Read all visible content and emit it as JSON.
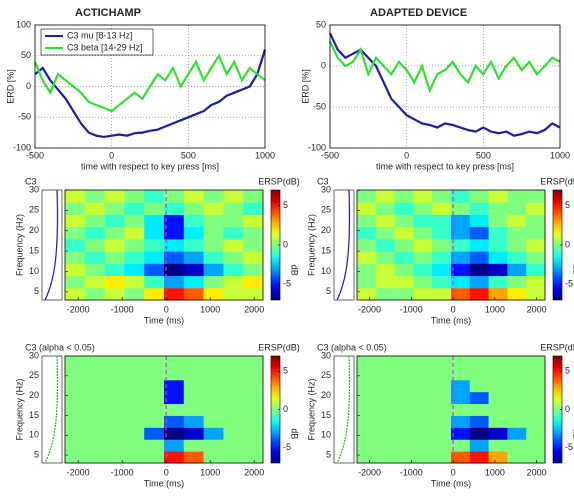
{
  "chart_data": [
    {
      "type": "line",
      "title": "ACTICHAMP",
      "ylabel": "ERD [%]",
      "xlabel": "time with respect to key press [ms]",
      "x": [
        -500,
        -450,
        -400,
        -350,
        -300,
        -250,
        -200,
        -150,
        -100,
        -50,
        0,
        50,
        100,
        150,
        200,
        250,
        300,
        350,
        400,
        450,
        500,
        550,
        600,
        650,
        700,
        750,
        800,
        850,
        900,
        950,
        1000
      ],
      "series": [
        {
          "name": "C3 mu [8-13 Hz]",
          "color": "#1c1ca8",
          "values": [
            20,
            30,
            10,
            -5,
            -20,
            -40,
            -60,
            -75,
            -80,
            -82,
            -80,
            -78,
            -80,
            -76,
            -75,
            -72,
            -70,
            -65,
            -60,
            -55,
            -50,
            -45,
            -40,
            -30,
            -25,
            -15,
            -10,
            -5,
            0,
            20,
            60
          ]
        },
        {
          "name": "C3 beta [14-29 Hz]",
          "color": "#33dd33",
          "values": [
            40,
            10,
            -10,
            20,
            10,
            0,
            -10,
            -25,
            -30,
            -35,
            -40,
            -30,
            -20,
            -10,
            -20,
            0,
            20,
            10,
            30,
            0,
            20,
            40,
            10,
            30,
            50,
            20,
            40,
            10,
            30,
            20,
            10
          ]
        }
      ],
      "xlim": [
        -500,
        1000
      ],
      "xticks": [
        -500,
        0,
        500,
        1000
      ],
      "ylim": [
        -100,
        100
      ],
      "yticks": [
        -100,
        -50,
        0,
        50,
        100
      ],
      "grid": true,
      "legend": "upper left"
    },
    {
      "type": "line",
      "title": "ADAPTED DEVICE",
      "ylabel": "ERD [%]",
      "xlabel": "time with respect to key press [ms]",
      "x": [
        -500,
        -450,
        -400,
        -350,
        -300,
        -250,
        -200,
        -150,
        -100,
        -50,
        0,
        50,
        100,
        150,
        200,
        250,
        300,
        350,
        400,
        450,
        500,
        550,
        600,
        650,
        700,
        750,
        800,
        850,
        900,
        950,
        1000
      ],
      "series": [
        {
          "color": "#1c1ca8",
          "values": [
            40,
            20,
            10,
            15,
            20,
            10,
            0,
            -20,
            -40,
            -50,
            -60,
            -65,
            -70,
            -72,
            -75,
            -70,
            -72,
            -75,
            -78,
            -80,
            -75,
            -80,
            -82,
            -80,
            -85,
            -83,
            -80,
            -82,
            -78,
            -70,
            -75
          ]
        },
        {
          "color": "#33dd33",
          "values": [
            30,
            10,
            0,
            5,
            20,
            -10,
            10,
            0,
            -10,
            5,
            -5,
            -20,
            0,
            -30,
            -10,
            -5,
            5,
            -10,
            -20,
            0,
            -10,
            5,
            -15,
            0,
            10,
            -5,
            5,
            -10,
            0,
            10,
            5
          ]
        }
      ],
      "xlim": [
        -500,
        1000
      ],
      "xticks": [
        -500,
        0,
        500,
        1000
      ],
      "ylim": [
        -100,
        50
      ],
      "yticks": [
        -100,
        -50,
        0,
        50
      ],
      "grid": true
    },
    {
      "type": "heatmap",
      "title": "C3",
      "colorbar_label": "ERSP(dB)",
      "colorbar_unit": "dB",
      "ylabel": "Frequency (Hz)",
      "xlabel": "Time (ms)",
      "xbins": [
        -2300,
        -1850,
        -1400,
        -950,
        -500,
        -50,
        400,
        850,
        1300,
        1750,
        2200
      ],
      "ybins": [
        3,
        6,
        9,
        12,
        15,
        18,
        21,
        24,
        27,
        30
      ],
      "xlim": [
        -2300,
        2200
      ],
      "xticks": [
        -2000,
        -1000,
        0,
        1000,
        2000
      ],
      "ylim": [
        3,
        30
      ],
      "yticks": [
        5,
        10,
        15,
        20,
        25,
        30
      ],
      "clim": [
        -7,
        7
      ],
      "cticks": [
        5,
        0,
        -5
      ],
      "event_line": 0,
      "values": [
        [
          1,
          0,
          1,
          0,
          2,
          5,
          4,
          2,
          1,
          1
        ],
        [
          0,
          1,
          2,
          1,
          -1,
          -3,
          -2,
          0,
          1,
          2
        ],
        [
          1,
          0,
          -1,
          -2,
          -4,
          -7,
          -6,
          -3,
          -1,
          0
        ],
        [
          0,
          -1,
          0,
          -1,
          -2,
          -4,
          -3,
          -1,
          0,
          1
        ],
        [
          -1,
          0,
          1,
          0,
          -1,
          -2,
          -1,
          0,
          1,
          0
        ],
        [
          0,
          -1,
          0,
          1,
          -2,
          -5,
          -2,
          0,
          -1,
          0
        ],
        [
          1,
          0,
          -1,
          0,
          -2,
          -5,
          -1,
          0,
          0,
          1
        ],
        [
          0,
          1,
          0,
          -1,
          0,
          -1,
          0,
          1,
          0,
          -1
        ],
        [
          1,
          0,
          1,
          0,
          -1,
          0,
          1,
          0,
          1,
          0
        ]
      ]
    },
    {
      "type": "heatmap",
      "title": "C3",
      "colorbar_label": "ERSP(dB)",
      "colorbar_unit": "dB",
      "ylabel": "Frequency (Hz)",
      "xlabel": "Time (ms)",
      "xbins": [
        -2300,
        -1850,
        -1400,
        -950,
        -500,
        -50,
        400,
        850,
        1300,
        1750,
        2200
      ],
      "ybins": [
        3,
        6,
        9,
        12,
        15,
        18,
        21,
        24,
        27,
        30
      ],
      "xlim": [
        -2300,
        2200
      ],
      "xticks": [
        -2000,
        -1000,
        0,
        1000,
        2000
      ],
      "ylim": [
        3,
        30
      ],
      "yticks": [
        5,
        10,
        15,
        20,
        25,
        30
      ],
      "clim": [
        -7,
        7
      ],
      "cticks": [
        5,
        0,
        -5
      ],
      "event_line": 0,
      "values": [
        [
          1,
          0,
          0,
          1,
          1,
          4,
          5,
          3,
          2,
          1
        ],
        [
          0,
          1,
          1,
          0,
          -1,
          -2,
          -3,
          -1,
          0,
          1
        ],
        [
          0,
          1,
          0,
          -1,
          -2,
          -5,
          -7,
          -6,
          -3,
          -1
        ],
        [
          1,
          0,
          -1,
          0,
          -1,
          -3,
          -4,
          -2,
          -1,
          0
        ],
        [
          0,
          -1,
          0,
          1,
          0,
          -1,
          -2,
          -1,
          0,
          1
        ],
        [
          -1,
          0,
          1,
          0,
          -1,
          -3,
          -4,
          -1,
          0,
          0
        ],
        [
          0,
          1,
          0,
          -1,
          -1,
          -3,
          -2,
          0,
          1,
          0
        ],
        [
          1,
          0,
          -1,
          0,
          1,
          0,
          -1,
          0,
          0,
          1
        ],
        [
          0,
          1,
          0,
          1,
          0,
          -1,
          0,
          1,
          0,
          0
        ]
      ]
    },
    {
      "type": "heatmap",
      "title": "C3 (alpha < 0.05)",
      "colorbar_label": "ERSP(dB)",
      "colorbar_unit": "dB",
      "ylabel": "Frequency (Hz)",
      "xlabel": "Time (ms)",
      "xbins": [
        -2300,
        -1850,
        -1400,
        -950,
        -500,
        -50,
        400,
        850,
        1300,
        1750,
        2200
      ],
      "ybins": [
        3,
        6,
        9,
        12,
        15,
        18,
        21,
        24,
        27,
        30
      ],
      "xlim": [
        -2300,
        2200
      ],
      "xticks": [
        -2000,
        -1000,
        0,
        1000,
        2000
      ],
      "ylim": [
        3,
        30
      ],
      "yticks": [
        5,
        10,
        15,
        20,
        25,
        30
      ],
      "clim": [
        -7,
        7
      ],
      "cticks": [
        5,
        0,
        -5
      ],
      "event_line": 0,
      "values": [
        [
          0,
          0,
          0,
          0,
          0,
          5,
          4,
          0,
          0,
          0
        ],
        [
          0,
          0,
          0,
          0,
          0,
          -3,
          0,
          0,
          0,
          0
        ],
        [
          0,
          0,
          0,
          0,
          -4,
          -7,
          -6,
          -3,
          0,
          0
        ],
        [
          0,
          0,
          0,
          0,
          0,
          -4,
          -3,
          0,
          0,
          0
        ],
        [
          0,
          0,
          0,
          0,
          0,
          0,
          0,
          0,
          0,
          0
        ],
        [
          0,
          0,
          0,
          0,
          0,
          -5,
          0,
          0,
          0,
          0
        ],
        [
          0,
          0,
          0,
          0,
          0,
          -5,
          0,
          0,
          0,
          0
        ],
        [
          0,
          0,
          0,
          0,
          0,
          0,
          0,
          0,
          0,
          0
        ],
        [
          0,
          0,
          0,
          0,
          0,
          0,
          0,
          0,
          0,
          0
        ]
      ]
    },
    {
      "type": "heatmap",
      "title": "C3 (alpha < 0.05)",
      "colorbar_label": "ERSP(dB)",
      "colorbar_unit": "dB",
      "ylabel": "Frequency (Hz)",
      "xlabel": "Time (ms)",
      "xbins": [
        -2300,
        -1850,
        -1400,
        -950,
        -500,
        -50,
        400,
        850,
        1300,
        1750,
        2200
      ],
      "ybins": [
        3,
        6,
        9,
        12,
        15,
        18,
        21,
        24,
        27,
        30
      ],
      "xlim": [
        -2300,
        2200
      ],
      "xticks": [
        -2000,
        -1000,
        0,
        1000,
        2000
      ],
      "ylim": [
        3,
        30
      ],
      "yticks": [
        5,
        10,
        15,
        20,
        25,
        30
      ],
      "clim": [
        -7,
        7
      ],
      "cticks": [
        5,
        0,
        -5
      ],
      "event_line": 0,
      "values": [
        [
          0,
          0,
          0,
          0,
          0,
          4,
          5,
          3,
          0,
          0
        ],
        [
          0,
          0,
          0,
          0,
          0,
          0,
          -3,
          0,
          0,
          0
        ],
        [
          0,
          0,
          0,
          0,
          0,
          -5,
          -7,
          -6,
          -3,
          0
        ],
        [
          0,
          0,
          0,
          0,
          0,
          -3,
          -4,
          0,
          0,
          0
        ],
        [
          0,
          0,
          0,
          0,
          0,
          0,
          0,
          0,
          0,
          0
        ],
        [
          0,
          0,
          0,
          0,
          0,
          -3,
          -4,
          0,
          0,
          0
        ],
        [
          0,
          0,
          0,
          0,
          0,
          -3,
          0,
          0,
          0,
          0
        ],
        [
          0,
          0,
          0,
          0,
          0,
          0,
          0,
          0,
          0,
          0
        ],
        [
          0,
          0,
          0,
          0,
          0,
          0,
          0,
          0,
          0,
          0
        ]
      ]
    }
  ]
}
